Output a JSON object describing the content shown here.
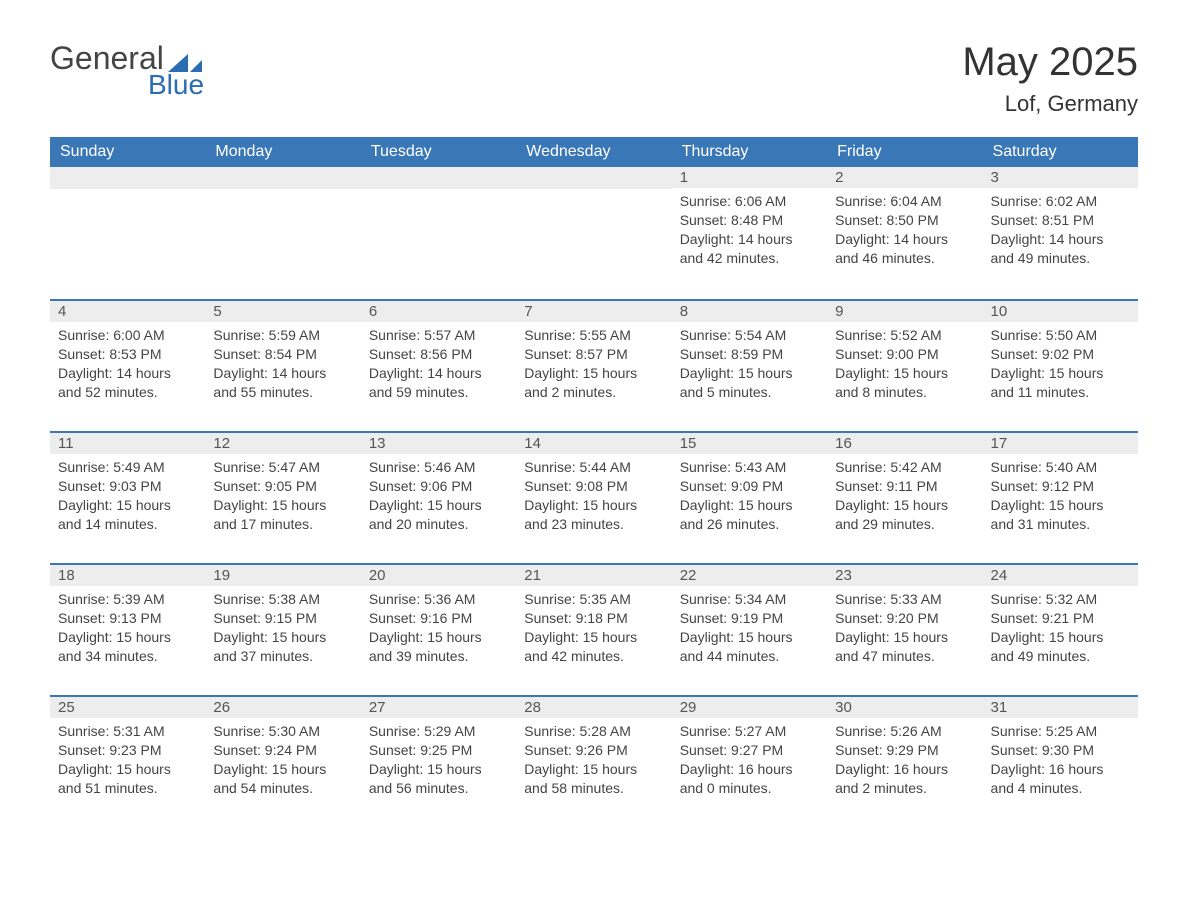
{
  "brand": {
    "general": "General",
    "blue": "Blue",
    "accent": "#2a6db0"
  },
  "title": "May 2025",
  "location": "Lof, Germany",
  "colors": {
    "header_bg": "#3a77b7",
    "header_text": "#ffffff",
    "daynum_bg": "#ededed",
    "border_top": "#3a77b7",
    "body_text": "#444444",
    "page_bg": "#ffffff"
  },
  "weekdays": [
    "Sunday",
    "Monday",
    "Tuesday",
    "Wednesday",
    "Thursday",
    "Friday",
    "Saturday"
  ],
  "weeks": [
    [
      null,
      null,
      null,
      null,
      {
        "n": "1",
        "sunrise": "6:06 AM",
        "sunset": "8:48 PM",
        "dl": "14 hours and 42 minutes."
      },
      {
        "n": "2",
        "sunrise": "6:04 AM",
        "sunset": "8:50 PM",
        "dl": "14 hours and 46 minutes."
      },
      {
        "n": "3",
        "sunrise": "6:02 AM",
        "sunset": "8:51 PM",
        "dl": "14 hours and 49 minutes."
      }
    ],
    [
      {
        "n": "4",
        "sunrise": "6:00 AM",
        "sunset": "8:53 PM",
        "dl": "14 hours and 52 minutes."
      },
      {
        "n": "5",
        "sunrise": "5:59 AM",
        "sunset": "8:54 PM",
        "dl": "14 hours and 55 minutes."
      },
      {
        "n": "6",
        "sunrise": "5:57 AM",
        "sunset": "8:56 PM",
        "dl": "14 hours and 59 minutes."
      },
      {
        "n": "7",
        "sunrise": "5:55 AM",
        "sunset": "8:57 PM",
        "dl": "15 hours and 2 minutes."
      },
      {
        "n": "8",
        "sunrise": "5:54 AM",
        "sunset": "8:59 PM",
        "dl": "15 hours and 5 minutes."
      },
      {
        "n": "9",
        "sunrise": "5:52 AM",
        "sunset": "9:00 PM",
        "dl": "15 hours and 8 minutes."
      },
      {
        "n": "10",
        "sunrise": "5:50 AM",
        "sunset": "9:02 PM",
        "dl": "15 hours and 11 minutes."
      }
    ],
    [
      {
        "n": "11",
        "sunrise": "5:49 AM",
        "sunset": "9:03 PM",
        "dl": "15 hours and 14 minutes."
      },
      {
        "n": "12",
        "sunrise": "5:47 AM",
        "sunset": "9:05 PM",
        "dl": "15 hours and 17 minutes."
      },
      {
        "n": "13",
        "sunrise": "5:46 AM",
        "sunset": "9:06 PM",
        "dl": "15 hours and 20 minutes."
      },
      {
        "n": "14",
        "sunrise": "5:44 AM",
        "sunset": "9:08 PM",
        "dl": "15 hours and 23 minutes."
      },
      {
        "n": "15",
        "sunrise": "5:43 AM",
        "sunset": "9:09 PM",
        "dl": "15 hours and 26 minutes."
      },
      {
        "n": "16",
        "sunrise": "5:42 AM",
        "sunset": "9:11 PM",
        "dl": "15 hours and 29 minutes."
      },
      {
        "n": "17",
        "sunrise": "5:40 AM",
        "sunset": "9:12 PM",
        "dl": "15 hours and 31 minutes."
      }
    ],
    [
      {
        "n": "18",
        "sunrise": "5:39 AM",
        "sunset": "9:13 PM",
        "dl": "15 hours and 34 minutes."
      },
      {
        "n": "19",
        "sunrise": "5:38 AM",
        "sunset": "9:15 PM",
        "dl": "15 hours and 37 minutes."
      },
      {
        "n": "20",
        "sunrise": "5:36 AM",
        "sunset": "9:16 PM",
        "dl": "15 hours and 39 minutes."
      },
      {
        "n": "21",
        "sunrise": "5:35 AM",
        "sunset": "9:18 PM",
        "dl": "15 hours and 42 minutes."
      },
      {
        "n": "22",
        "sunrise": "5:34 AM",
        "sunset": "9:19 PM",
        "dl": "15 hours and 44 minutes."
      },
      {
        "n": "23",
        "sunrise": "5:33 AM",
        "sunset": "9:20 PM",
        "dl": "15 hours and 47 minutes."
      },
      {
        "n": "24",
        "sunrise": "5:32 AM",
        "sunset": "9:21 PM",
        "dl": "15 hours and 49 minutes."
      }
    ],
    [
      {
        "n": "25",
        "sunrise": "5:31 AM",
        "sunset": "9:23 PM",
        "dl": "15 hours and 51 minutes."
      },
      {
        "n": "26",
        "sunrise": "5:30 AM",
        "sunset": "9:24 PM",
        "dl": "15 hours and 54 minutes."
      },
      {
        "n": "27",
        "sunrise": "5:29 AM",
        "sunset": "9:25 PM",
        "dl": "15 hours and 56 minutes."
      },
      {
        "n": "28",
        "sunrise": "5:28 AM",
        "sunset": "9:26 PM",
        "dl": "15 hours and 58 minutes."
      },
      {
        "n": "29",
        "sunrise": "5:27 AM",
        "sunset": "9:27 PM",
        "dl": "16 hours and 0 minutes."
      },
      {
        "n": "30",
        "sunrise": "5:26 AM",
        "sunset": "9:29 PM",
        "dl": "16 hours and 2 minutes."
      },
      {
        "n": "31",
        "sunrise": "5:25 AM",
        "sunset": "9:30 PM",
        "dl": "16 hours and 4 minutes."
      }
    ]
  ],
  "labels": {
    "sunrise": "Sunrise: ",
    "sunset": "Sunset: ",
    "daylight": "Daylight: "
  }
}
